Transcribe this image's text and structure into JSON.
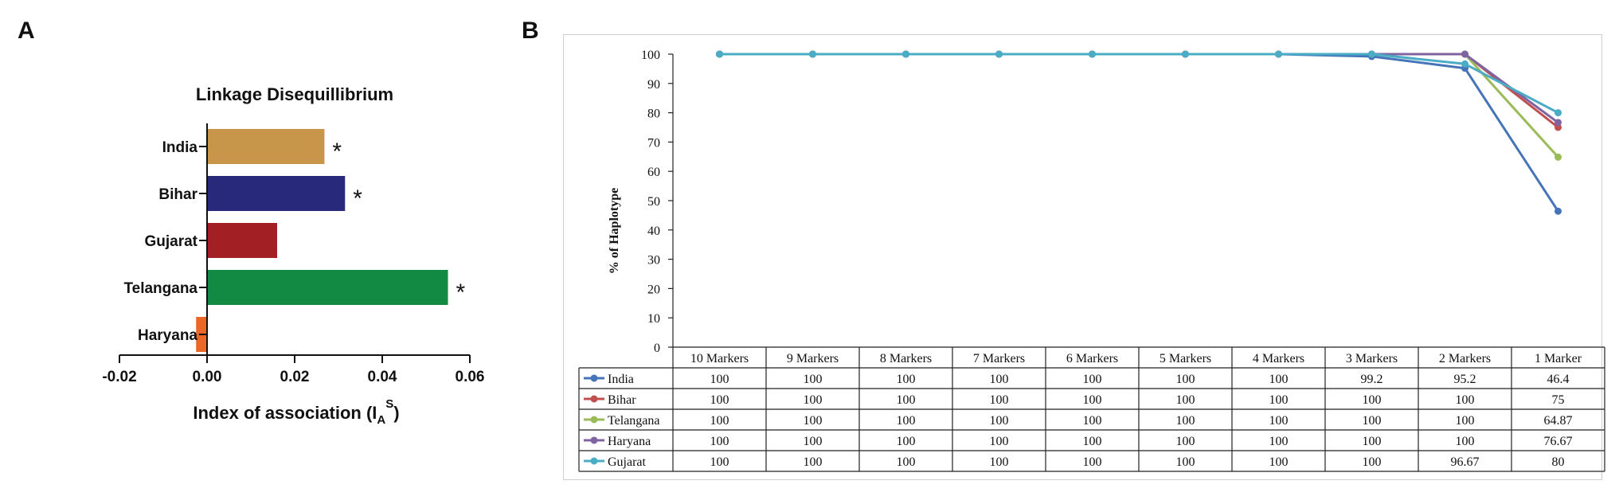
{
  "panels": {
    "a_letter": "A",
    "b_letter": "B"
  },
  "chart_data": [
    {
      "type": "bar",
      "orientation": "horizontal",
      "title": "Linkage Disequillibrium",
      "xlabel_main": "Index of association (I",
      "xlabel_sub": "A",
      "xlabel_sup": "S",
      "xlabel_close": ")",
      "xlim": [
        -0.02,
        0.06
      ],
      "xticks": [
        -0.02,
        0.0,
        0.02,
        0.04,
        0.06
      ],
      "xtick_labels": [
        "-0.02",
        "0.00",
        "0.02",
        "0.04",
        "0.06"
      ],
      "categories": [
        "India",
        "Bihar",
        "Gujarat",
        "Telangana",
        "Haryana"
      ],
      "values": [
        0.0268,
        0.0315,
        0.016,
        0.055,
        -0.0025
      ],
      "colors": [
        "#C8964B",
        "#28297A",
        "#A21F24",
        "#138A43",
        "#EC6625"
      ],
      "significant": [
        true,
        true,
        false,
        true,
        false
      ],
      "significance_marker": "*"
    },
    {
      "type": "line",
      "ylabel": "% of Haplotype",
      "ylim": [
        0,
        100
      ],
      "yticks": [
        0,
        10,
        20,
        30,
        40,
        50,
        60,
        70,
        80,
        90,
        100
      ],
      "categories": [
        "10 Markers",
        "9 Markers",
        "8 Markers",
        "7 Markers",
        "6 Markers",
        "5 Markers",
        "4 Markers",
        "3 Markers",
        "2 Markers",
        "1 Marker"
      ],
      "series": [
        {
          "name": "India",
          "color": "#4575B8",
          "values": [
            100,
            100,
            100,
            100,
            100,
            100,
            100,
            99.2,
            95.2,
            46.4
          ],
          "labels": [
            "100",
            "100",
            "100",
            "100",
            "100",
            "100",
            "100",
            "99.2",
            "95.2",
            "46.4"
          ]
        },
        {
          "name": "Bihar",
          "color": "#C0504D",
          "values": [
            100,
            100,
            100,
            100,
            100,
            100,
            100,
            100,
            100,
            75
          ],
          "labels": [
            "100",
            "100",
            "100",
            "100",
            "100",
            "100",
            "100",
            "100",
            "100",
            "75"
          ]
        },
        {
          "name": "Telangana",
          "color": "#9BBB59",
          "values": [
            100,
            100,
            100,
            100,
            100,
            100,
            100,
            100,
            100,
            64.87
          ],
          "labels": [
            "100",
            "100",
            "100",
            "100",
            "100",
            "100",
            "100",
            "100",
            "100",
            "64.87"
          ]
        },
        {
          "name": "Haryana",
          "color": "#8064A2",
          "values": [
            100,
            100,
            100,
            100,
            100,
            100,
            100,
            100,
            100,
            76.67
          ],
          "labels": [
            "100",
            "100",
            "100",
            "100",
            "100",
            "100",
            "100",
            "100",
            "100",
            "76.67"
          ]
        },
        {
          "name": "Gujarat",
          "color": "#4BACC6",
          "values": [
            100,
            100,
            100,
            100,
            100,
            100,
            100,
            100,
            96.67,
            80
          ],
          "labels": [
            "100",
            "100",
            "100",
            "100",
            "100",
            "100",
            "100",
            "100",
            "96.67",
            "80"
          ]
        }
      ]
    }
  ]
}
